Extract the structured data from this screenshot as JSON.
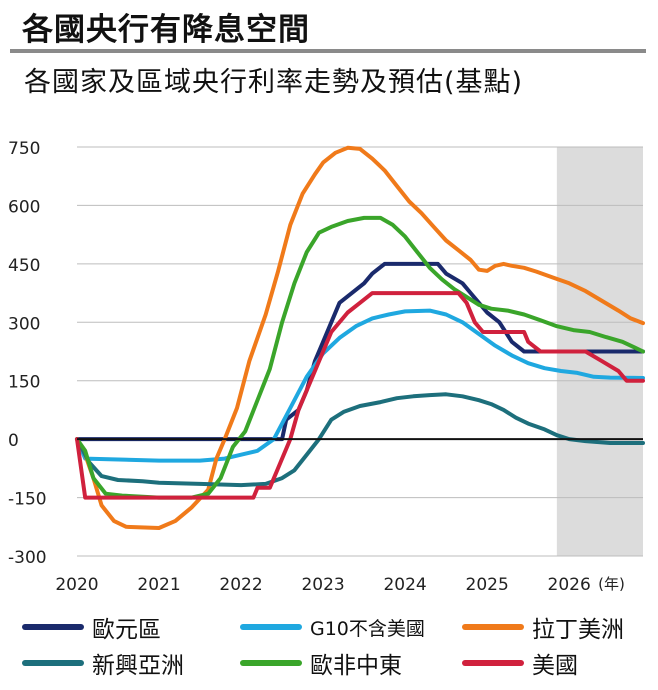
{
  "header": {
    "title": "各國央行有降息空間",
    "subtitle": "各國家及區域央行利率走勢及預估(基點)"
  },
  "colors": {
    "eurozone": "#1a2a6c",
    "g10": "#1fa8e0",
    "latam": "#f07a1a",
    "em_asia": "#1d6f7c",
    "emea": "#3aa52a",
    "us": "#d0213d",
    "forecast_band": "#dcdcdc",
    "axis_text": "#222222"
  },
  "chart_data": {
    "type": "line",
    "title": "各國家及區域央行利率走勢及預估(基點)",
    "xlabel": "(年)",
    "ylabel": "",
    "xlim": [
      2020,
      2026.9
    ],
    "ylim": [
      -300,
      750
    ],
    "yticks": [
      750,
      600,
      450,
      300,
      150,
      0,
      -150,
      -300
    ],
    "ytick_labels": [
      "750",
      "600",
      "450",
      "300",
      "150",
      "0",
      "-150",
      "-300"
    ],
    "xticks": [
      2020,
      2021,
      2022,
      2023,
      2024,
      2025,
      2026
    ],
    "xtick_labels": [
      "2020",
      "2021",
      "2022",
      "2023",
      "2024",
      "2025",
      "2026"
    ],
    "x_unit_label": "(年)",
    "forecast_start": 2025.85,
    "series": [
      {
        "name": "歐元區",
        "key": "eurozone",
        "points": [
          [
            2020,
            0
          ],
          [
            2022.5,
            0
          ],
          [
            2022.55,
            50
          ],
          [
            2022.7,
            75
          ],
          [
            2022.8,
            125
          ],
          [
            2022.9,
            200
          ],
          [
            2023.0,
            250
          ],
          [
            2023.1,
            300
          ],
          [
            2023.2,
            350
          ],
          [
            2023.35,
            375
          ],
          [
            2023.5,
            400
          ],
          [
            2023.6,
            425
          ],
          [
            2023.75,
            450
          ],
          [
            2024.4,
            450
          ],
          [
            2024.5,
            425
          ],
          [
            2024.7,
            400
          ],
          [
            2024.8,
            375
          ],
          [
            2024.9,
            350
          ],
          [
            2025.0,
            325
          ],
          [
            2025.15,
            300
          ],
          [
            2025.3,
            250
          ],
          [
            2025.45,
            225
          ],
          [
            2026.9,
            225
          ]
        ]
      },
      {
        "name": "G10不含美國",
        "key": "g10",
        "points": [
          [
            2020,
            0
          ],
          [
            2020.1,
            -50
          ],
          [
            2021.0,
            -55
          ],
          [
            2021.5,
            -55
          ],
          [
            2021.8,
            -50
          ],
          [
            2022.0,
            -40
          ],
          [
            2022.2,
            -30
          ],
          [
            2022.4,
            0
          ],
          [
            2022.6,
            80
          ],
          [
            2022.8,
            160
          ],
          [
            2023.0,
            220
          ],
          [
            2023.2,
            260
          ],
          [
            2023.4,
            290
          ],
          [
            2023.6,
            310
          ],
          [
            2023.8,
            320
          ],
          [
            2024.0,
            328
          ],
          [
            2024.3,
            330
          ],
          [
            2024.5,
            320
          ],
          [
            2024.7,
            300
          ],
          [
            2024.9,
            270
          ],
          [
            2025.1,
            240
          ],
          [
            2025.3,
            215
          ],
          [
            2025.5,
            195
          ],
          [
            2025.7,
            182
          ],
          [
            2025.9,
            175
          ],
          [
            2026.1,
            170
          ],
          [
            2026.3,
            160
          ],
          [
            2026.5,
            158
          ],
          [
            2026.9,
            157
          ]
        ]
      },
      {
        "name": "拉丁美洲",
        "key": "latam",
        "points": [
          [
            2020,
            0
          ],
          [
            2020.1,
            -40
          ],
          [
            2020.2,
            -100
          ],
          [
            2020.3,
            -170
          ],
          [
            2020.45,
            -210
          ],
          [
            2020.6,
            -225
          ],
          [
            2021.0,
            -228
          ],
          [
            2021.2,
            -210
          ],
          [
            2021.4,
            -175
          ],
          [
            2021.6,
            -130
          ],
          [
            2021.7,
            -50
          ],
          [
            2021.8,
            0
          ],
          [
            2021.95,
            80
          ],
          [
            2022.1,
            200
          ],
          [
            2022.3,
            320
          ],
          [
            2022.45,
            430
          ],
          [
            2022.6,
            550
          ],
          [
            2022.75,
            630
          ],
          [
            2022.9,
            680
          ],
          [
            2023.0,
            710
          ],
          [
            2023.15,
            735
          ],
          [
            2023.3,
            748
          ],
          [
            2023.45,
            745
          ],
          [
            2023.6,
            720
          ],
          [
            2023.75,
            690
          ],
          [
            2023.9,
            650
          ],
          [
            2024.05,
            610
          ],
          [
            2024.2,
            580
          ],
          [
            2024.35,
            545
          ],
          [
            2024.5,
            510
          ],
          [
            2024.65,
            485
          ],
          [
            2024.8,
            460
          ],
          [
            2024.9,
            435
          ],
          [
            2025.0,
            432
          ],
          [
            2025.1,
            445
          ],
          [
            2025.2,
            450
          ],
          [
            2025.3,
            445
          ],
          [
            2025.45,
            440
          ],
          [
            2025.6,
            430
          ],
          [
            2025.8,
            415
          ],
          [
            2026.0,
            400
          ],
          [
            2026.2,
            380
          ],
          [
            2026.4,
            355
          ],
          [
            2026.6,
            330
          ],
          [
            2026.75,
            310
          ],
          [
            2026.9,
            298
          ]
        ]
      },
      {
        "name": "新興亞洲",
        "key": "em_asia",
        "points": [
          [
            2020,
            0
          ],
          [
            2020.05,
            -20
          ],
          [
            2020.15,
            -60
          ],
          [
            2020.3,
            -95
          ],
          [
            2020.5,
            -105
          ],
          [
            2020.8,
            -108
          ],
          [
            2021.0,
            -112
          ],
          [
            2021.5,
            -115
          ],
          [
            2022.0,
            -118
          ],
          [
            2022.3,
            -115
          ],
          [
            2022.5,
            -100
          ],
          [
            2022.65,
            -80
          ],
          [
            2022.8,
            -40
          ],
          [
            2022.95,
            0
          ],
          [
            2023.1,
            50
          ],
          [
            2023.25,
            70
          ],
          [
            2023.45,
            85
          ],
          [
            2023.7,
            95
          ],
          [
            2023.9,
            105
          ],
          [
            2024.1,
            110
          ],
          [
            2024.3,
            113
          ],
          [
            2024.5,
            115
          ],
          [
            2024.7,
            110
          ],
          [
            2024.9,
            100
          ],
          [
            2025.05,
            90
          ],
          [
            2025.2,
            75
          ],
          [
            2025.35,
            55
          ],
          [
            2025.5,
            40
          ],
          [
            2025.7,
            25
          ],
          [
            2025.85,
            10
          ],
          [
            2026.0,
            0
          ],
          [
            2026.2,
            -5
          ],
          [
            2026.5,
            -10
          ],
          [
            2026.9,
            -10
          ]
        ]
      },
      {
        "name": "歐非中東",
        "key": "emea",
        "points": [
          [
            2020,
            0
          ],
          [
            2020.1,
            -30
          ],
          [
            2020.2,
            -100
          ],
          [
            2020.35,
            -140
          ],
          [
            2020.55,
            -145
          ],
          [
            2021.0,
            -150
          ],
          [
            2021.4,
            -150
          ],
          [
            2021.6,
            -140
          ],
          [
            2021.75,
            -100
          ],
          [
            2021.9,
            -20
          ],
          [
            2022.05,
            20
          ],
          [
            2022.2,
            100
          ],
          [
            2022.35,
            180
          ],
          [
            2022.5,
            300
          ],
          [
            2022.65,
            400
          ],
          [
            2022.8,
            480
          ],
          [
            2022.95,
            530
          ],
          [
            2023.1,
            545
          ],
          [
            2023.3,
            560
          ],
          [
            2023.5,
            568
          ],
          [
            2023.7,
            568
          ],
          [
            2023.85,
            550
          ],
          [
            2024.0,
            520
          ],
          [
            2024.15,
            480
          ],
          [
            2024.3,
            440
          ],
          [
            2024.45,
            410
          ],
          [
            2024.6,
            385
          ],
          [
            2024.75,
            365
          ],
          [
            2024.9,
            345
          ],
          [
            2025.05,
            335
          ],
          [
            2025.25,
            330
          ],
          [
            2025.45,
            320
          ],
          [
            2025.65,
            305
          ],
          [
            2025.85,
            290
          ],
          [
            2026.05,
            280
          ],
          [
            2026.25,
            275
          ],
          [
            2026.45,
            262
          ],
          [
            2026.65,
            250
          ],
          [
            2026.8,
            235
          ],
          [
            2026.9,
            225
          ]
        ]
      },
      {
        "name": "美國",
        "key": "us",
        "points": [
          [
            2020,
            0
          ],
          [
            2020.1,
            -150
          ],
          [
            2022.15,
            -150
          ],
          [
            2022.2,
            -125
          ],
          [
            2022.35,
            -125
          ],
          [
            2022.45,
            -75
          ],
          [
            2022.6,
            0
          ],
          [
            2022.7,
            75
          ],
          [
            2022.85,
            150
          ],
          [
            2023.0,
            225
          ],
          [
            2023.1,
            275
          ],
          [
            2023.3,
            325
          ],
          [
            2023.45,
            350
          ],
          [
            2023.6,
            375
          ],
          [
            2024.65,
            375
          ],
          [
            2024.75,
            350
          ],
          [
            2024.85,
            300
          ],
          [
            2024.95,
            275
          ],
          [
            2025.45,
            275
          ],
          [
            2025.5,
            250
          ],
          [
            2025.65,
            225
          ],
          [
            2026.2,
            225
          ],
          [
            2026.4,
            200
          ],
          [
            2026.6,
            175
          ],
          [
            2026.7,
            150
          ],
          [
            2026.9,
            150
          ]
        ]
      }
    ]
  },
  "legend": [
    {
      "label": "歐元區",
      "key": "eurozone"
    },
    {
      "label": "G10不含美國",
      "key": "g10"
    },
    {
      "label": "拉丁美洲",
      "key": "latam"
    },
    {
      "label": "新興亞洲",
      "key": "em_asia"
    },
    {
      "label": "歐非中東",
      "key": "emea"
    },
    {
      "label": "美國",
      "key": "us"
    }
  ]
}
